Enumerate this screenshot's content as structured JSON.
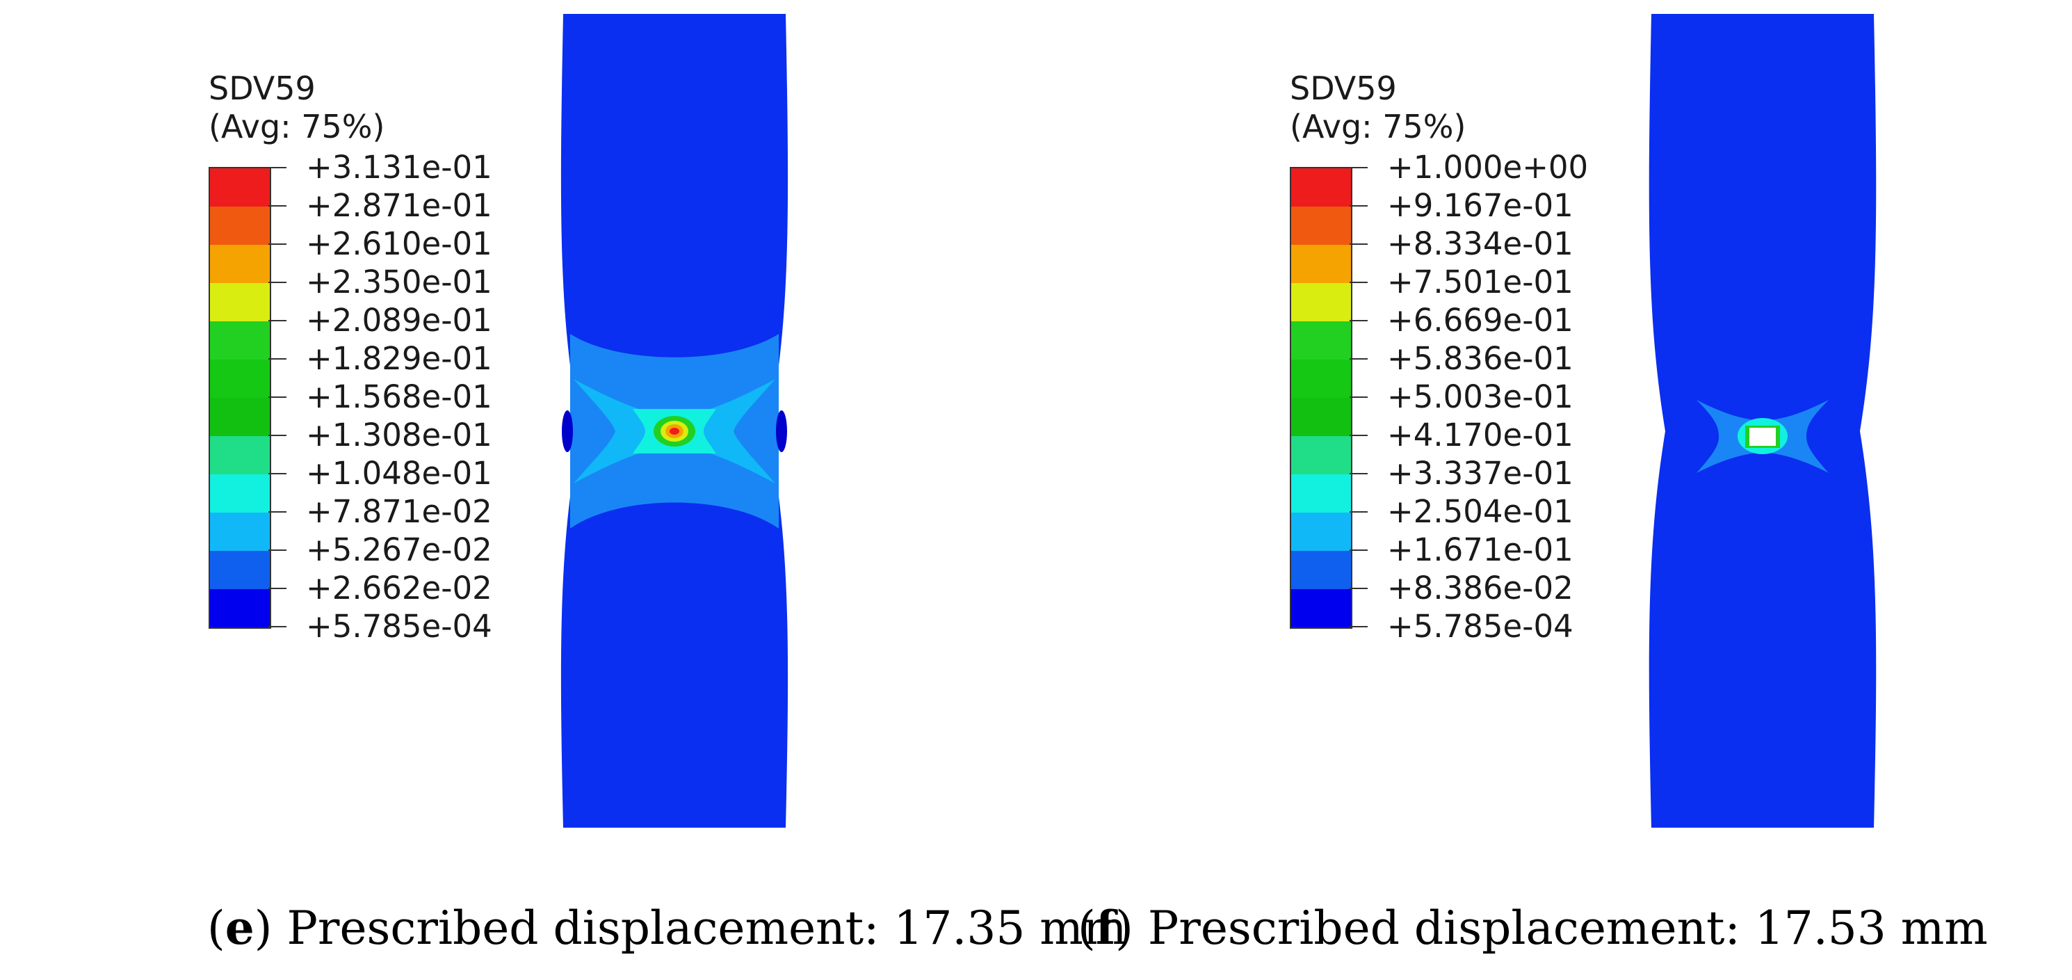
{
  "panels": [
    {
      "id": "e",
      "legend_title": "SDV59",
      "legend_avg": "(Avg: 75%)",
      "legend_labels": [
        "+3.131e-01",
        "+2.871e-01",
        "+2.610e-01",
        "+2.350e-01",
        "+2.089e-01",
        "+1.829e-01",
        "+1.568e-01",
        "+1.308e-01",
        "+1.048e-01",
        "+7.871e-02",
        "+5.267e-02",
        "+2.662e-02",
        "+5.785e-04"
      ],
      "caption_letter": "e",
      "caption_text": "Prescribed displacement: 17.35 mm"
    },
    {
      "id": "f",
      "legend_title": "SDV59",
      "legend_avg": "(Avg: 75%)",
      "legend_labels": [
        "+1.000e+00",
        "+9.167e-01",
        "+8.334e-01",
        "+7.501e-01",
        "+6.669e-01",
        "+5.836e-01",
        "+5.003e-01",
        "+4.170e-01",
        "+3.337e-01",
        "+2.504e-01",
        "+1.671e-01",
        "+8.386e-02",
        "+5.785e-04"
      ],
      "caption_letter": "f",
      "caption_text": "Prescribed displacement: 17.53 mm"
    }
  ],
  "colors": {
    "scale": [
      "#ee1c1c",
      "#f05a10",
      "#f5a300",
      "#d9ee10",
      "#22d022",
      "#14c814",
      "#12c012",
      "#20dd88",
      "#12f0e0",
      "#10b8f8",
      "#1060f0",
      "#0000ee"
    ],
    "specimen_blue": "#0a2ff0",
    "band_light_blue": "#1a86f5",
    "band_cyan": "#10d8e8"
  }
}
